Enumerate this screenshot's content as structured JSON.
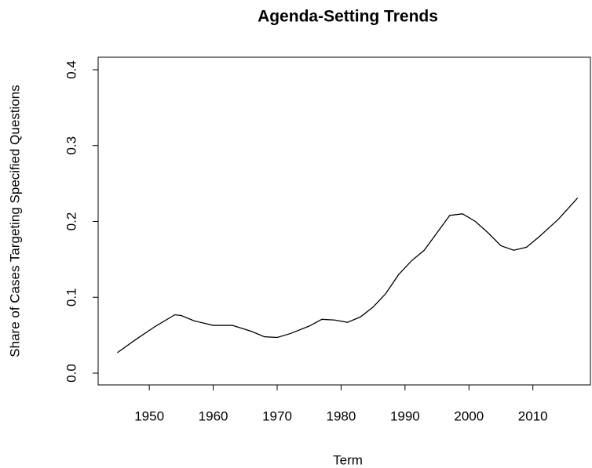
{
  "chart_data": {
    "type": "line",
    "title": "Agenda-Setting Trends",
    "x_label": "Term",
    "y_label": "Share of Cases Targeting Specified Questions",
    "x": [
      1945,
      1948,
      1951,
      1954,
      1955,
      1957,
      1960,
      1963,
      1966,
      1968,
      1970,
      1972,
      1975,
      1977,
      1979,
      1981,
      1983,
      1985,
      1987,
      1989,
      1991,
      1993,
      1995,
      1997,
      1999,
      2001,
      2003,
      2005,
      2007,
      2009,
      2011,
      2014,
      2017
    ],
    "series": [
      {
        "name": "Share",
        "color": "#000000",
        "values": [
          0.027,
          0.045,
          0.062,
          0.077,
          0.076,
          0.069,
          0.063,
          0.063,
          0.055,
          0.048,
          0.047,
          0.052,
          0.062,
          0.071,
          0.07,
          0.067,
          0.074,
          0.087,
          0.105,
          0.13,
          0.148,
          0.162,
          0.185,
          0.208,
          0.21,
          0.2,
          0.185,
          0.168,
          0.162,
          0.166,
          0.18,
          0.203,
          0.231
        ]
      }
    ],
    "xlim": [
      1942,
      2019
    ],
    "ylim": [
      -0.0155,
      0.4165
    ],
    "xticks": [
      1950,
      1960,
      1970,
      1980,
      1990,
      2000,
      2010
    ],
    "yticks": [
      {
        "value": 0,
        "label": "0.0"
      },
      0.1,
      0.2,
      0.3,
      0.4
    ]
  }
}
